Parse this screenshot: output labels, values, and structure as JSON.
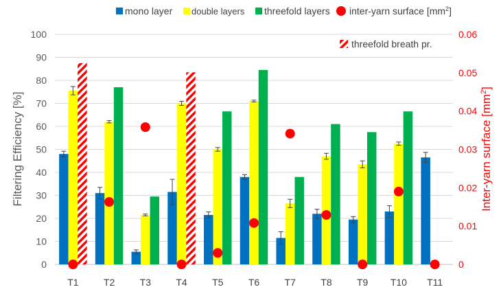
{
  "chart_data": {
    "type": "bar",
    "categories": [
      "T1",
      "T2",
      "T3",
      "T4",
      "T5",
      "T6",
      "T7",
      "T8",
      "T9",
      "T10",
      "T11"
    ],
    "series": [
      {
        "name": "mono layer",
        "color": "#0070c0",
        "values": [
          48,
          31,
          5.5,
          31.5,
          21.5,
          38,
          11.5,
          22,
          19.5,
          23,
          46.5
        ],
        "errors": [
          1.2,
          2.5,
          0.8,
          5.5,
          1.3,
          1.0,
          2.7,
          2.0,
          1.3,
          2.5,
          2.2
        ]
      },
      {
        "name": "double layers",
        "color": "#ffff00",
        "values": [
          75.5,
          62,
          21.5,
          70,
          50,
          71,
          26.5,
          47,
          43.5,
          52.5,
          null
        ],
        "errors": [
          1.8,
          0.5,
          0.4,
          0.9,
          0.8,
          0.4,
          1.8,
          1.3,
          1.5,
          0.7,
          null
        ]
      },
      {
        "name": "threefold layers",
        "color": "#00b050",
        "values": [
          null,
          77,
          29.5,
          null,
          66.5,
          84.5,
          38,
          61,
          57.5,
          66.5,
          null
        ]
      },
      {
        "name": "threefold breath pr.",
        "color": "#ff0000",
        "pattern": "hatched",
        "values": [
          87.5,
          null,
          null,
          83.5,
          null,
          null,
          null,
          null,
          null,
          null,
          null
        ]
      }
    ],
    "secondary_series": {
      "name": "inter-yarn surface [mm²]",
      "color": "#ff0000",
      "marker": "circle",
      "values": [
        0,
        0.0163,
        0.0358,
        0,
        0.003,
        0.0108,
        0.0341,
        0.0129,
        0,
        0.019,
        0
      ]
    },
    "ylabel": "Filtering Efficiency [%]",
    "ylim": [
      0,
      100
    ],
    "yticks": [
      "0",
      "10",
      "20",
      "30",
      "40",
      "50",
      "60",
      "70",
      "80",
      "90",
      "100"
    ],
    "y2label": "Inter-yarn surface [mm",
    "y2label_sup": "2",
    "y2label_end": "]",
    "y2lim": [
      0,
      0.06
    ],
    "y2ticks": [
      "0",
      "0.01",
      "0.02",
      "0.03",
      "0.04",
      "0.05",
      "0.06"
    ],
    "legend": {
      "mono": "mono layer",
      "double": "double layers",
      "threefold": "threefold layers",
      "surface": "inter-yarn surface [mm",
      "surface_sup": "2",
      "surface_end": "]",
      "breath": "threefold breath pr."
    },
    "grid": true,
    "legend_position": "top"
  }
}
